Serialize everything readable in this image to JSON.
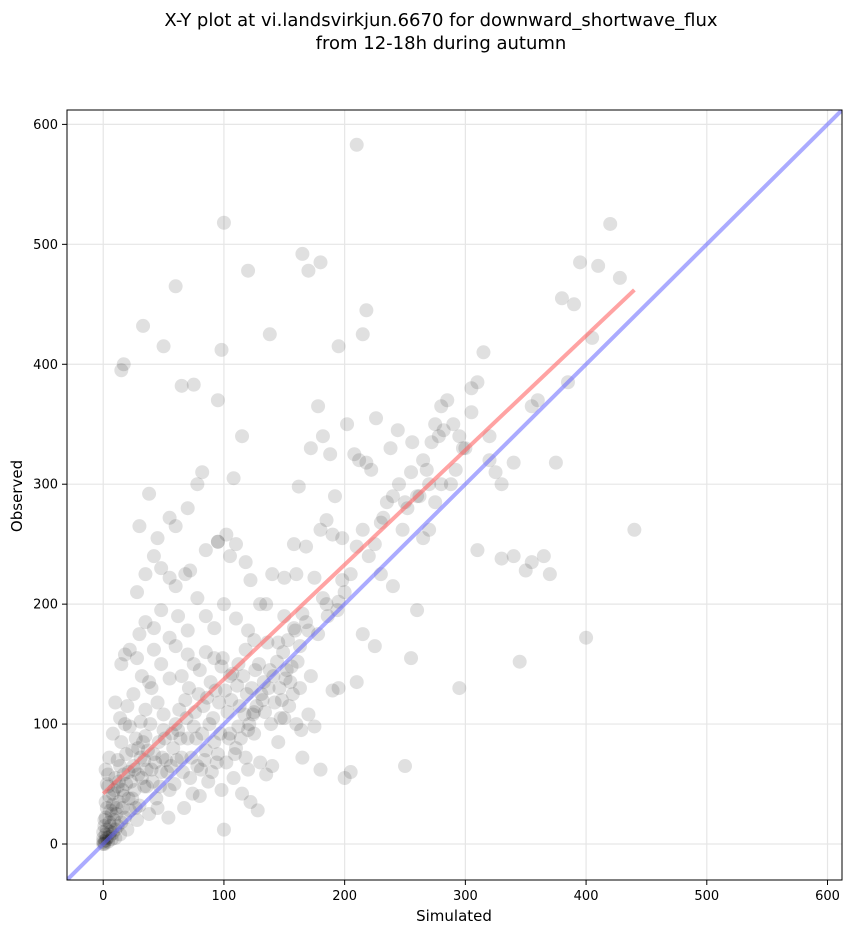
{
  "chart_data": {
    "type": "scatter",
    "title_line1": "X-Y plot at vi.landsvirkjun.6670 for downward_shortwave_flux",
    "title_line2": "from 12-18h during autumn",
    "xlabel": "Simulated",
    "ylabel": "Observed",
    "xlim": [
      -30,
      612
    ],
    "ylim": [
      -30,
      612
    ],
    "xticks": [
      0,
      100,
      200,
      300,
      400,
      500,
      600
    ],
    "yticks": [
      0,
      100,
      200,
      300,
      400,
      500,
      600
    ],
    "grid": true,
    "point_color": "#000000",
    "regression_color": "#ff6666",
    "identity_color": "#6666ff",
    "identity_line": {
      "x": [
        -30,
        612
      ],
      "y": [
        -30,
        612
      ]
    },
    "regression_line": {
      "x": [
        0,
        440
      ],
      "y": [
        42,
        462
      ]
    },
    "points": [
      [
        0,
        0
      ],
      [
        0,
        2
      ],
      [
        1,
        1
      ],
      [
        2,
        3
      ],
      [
        1,
        0
      ],
      [
        3,
        5
      ],
      [
        0,
        5
      ],
      [
        2,
        8
      ],
      [
        4,
        2
      ],
      [
        5,
        6
      ],
      [
        6,
        10
      ],
      [
        3,
        12
      ],
      [
        1,
        15
      ],
      [
        7,
        4
      ],
      [
        8,
        9
      ],
      [
        10,
        12
      ],
      [
        5,
        18
      ],
      [
        2,
        22
      ],
      [
        9,
        20
      ],
      [
        12,
        15
      ],
      [
        14,
        8
      ],
      [
        11,
        25
      ],
      [
        6,
        28
      ],
      [
        15,
        18
      ],
      [
        16,
        30
      ],
      [
        13,
        35
      ],
      [
        18,
        22
      ],
      [
        20,
        12
      ],
      [
        17,
        40
      ],
      [
        8,
        42
      ],
      [
        3,
        30
      ],
      [
        4,
        48
      ],
      [
        22,
        28
      ],
      [
        24,
        38
      ],
      [
        19,
        50
      ],
      [
        21,
        60
      ],
      [
        10,
        55
      ],
      [
        26,
        45
      ],
      [
        28,
        20
      ],
      [
        30,
        32
      ],
      [
        25,
        65
      ],
      [
        12,
        70
      ],
      [
        5,
        72
      ],
      [
        2,
        62
      ],
      [
        32,
        55
      ],
      [
        34,
        70
      ],
      [
        29,
        80
      ],
      [
        36,
        48
      ],
      [
        38,
        25
      ],
      [
        40,
        62
      ],
      [
        35,
        90
      ],
      [
        15,
        85
      ],
      [
        8,
        92
      ],
      [
        42,
        75
      ],
      [
        44,
        38
      ],
      [
        46,
        85
      ],
      [
        48,
        60
      ],
      [
        50,
        95
      ],
      [
        22,
        98
      ],
      [
        27,
        88
      ],
      [
        18,
        100
      ],
      [
        52,
        70
      ],
      [
        55,
        45
      ],
      [
        58,
        80
      ],
      [
        60,
        100
      ],
      [
        14,
        105
      ],
      [
        20,
        115
      ],
      [
        31,
        102
      ],
      [
        10,
        118
      ],
      [
        25,
        125
      ],
      [
        35,
        112
      ],
      [
        40,
        130
      ],
      [
        45,
        118
      ],
      [
        50,
        108
      ],
      [
        62,
        95
      ],
      [
        65,
        72
      ],
      [
        68,
        120
      ],
      [
        70,
        88
      ],
      [
        72,
        55
      ],
      [
        75,
        98
      ],
      [
        78,
        65
      ],
      [
        80,
        40
      ],
      [
        82,
        92
      ],
      [
        85,
        78
      ],
      [
        88,
        100
      ],
      [
        90,
        60
      ],
      [
        92,
        85
      ],
      [
        95,
        75
      ],
      [
        98,
        45
      ],
      [
        100,
        12
      ],
      [
        102,
        68
      ],
      [
        105,
        92
      ],
      [
        108,
        55
      ],
      [
        110,
        80
      ],
      [
        112,
        98
      ],
      [
        115,
        42
      ],
      [
        118,
        72
      ],
      [
        120,
        62
      ],
      [
        122,
        35
      ],
      [
        125,
        92
      ],
      [
        128,
        28
      ],
      [
        130,
        68
      ],
      [
        15,
        150
      ],
      [
        18,
        158
      ],
      [
        22,
        162
      ],
      [
        28,
        155
      ],
      [
        32,
        140
      ],
      [
        38,
        135
      ],
      [
        42,
        162
      ],
      [
        48,
        150
      ],
      [
        55,
        138
      ],
      [
        60,
        165
      ],
      [
        65,
        140
      ],
      [
        70,
        158
      ],
      [
        75,
        150
      ],
      [
        80,
        145
      ],
      [
        85,
        160
      ],
      [
        92,
        155
      ],
      [
        98,
        148
      ],
      [
        105,
        140
      ],
      [
        112,
        150
      ],
      [
        118,
        162
      ],
      [
        125,
        170
      ],
      [
        30,
        175
      ],
      [
        35,
        185
      ],
      [
        42,
        180
      ],
      [
        48,
        195
      ],
      [
        55,
        172
      ],
      [
        62,
        190
      ],
      [
        70,
        178
      ],
      [
        78,
        205
      ],
      [
        85,
        190
      ],
      [
        92,
        180
      ],
      [
        100,
        200
      ],
      [
        110,
        188
      ],
      [
        120,
        178
      ],
      [
        130,
        200
      ],
      [
        28,
        210
      ],
      [
        35,
        225
      ],
      [
        42,
        240
      ],
      [
        48,
        230
      ],
      [
        55,
        222
      ],
      [
        60,
        215
      ],
      [
        68,
        225
      ],
      [
        72,
        228
      ],
      [
        85,
        245
      ],
      [
        95,
        252
      ],
      [
        105,
        240
      ],
      [
        110,
        250
      ],
      [
        118,
        235
      ],
      [
        122,
        220
      ],
      [
        30,
        265
      ],
      [
        38,
        292
      ],
      [
        45,
        255
      ],
      [
        55,
        272
      ],
      [
        60,
        265
      ],
      [
        70,
        280
      ],
      [
        78,
        300
      ],
      [
        82,
        310
      ],
      [
        95,
        252
      ],
      [
        102,
        258
      ],
      [
        108,
        305
      ],
      [
        115,
        340
      ],
      [
        135,
        200
      ],
      [
        140,
        225
      ],
      [
        150,
        222
      ],
      [
        160,
        225
      ],
      [
        165,
        192
      ],
      [
        170,
        178
      ],
      [
        175,
        222
      ],
      [
        180,
        262
      ],
      [
        185,
        270
      ],
      [
        190,
        258
      ],
      [
        195,
        202
      ],
      [
        200,
        210
      ],
      [
        205,
        225
      ],
      [
        210,
        248
      ],
      [
        215,
        262
      ],
      [
        220,
        240
      ],
      [
        225,
        250
      ],
      [
        230,
        268
      ],
      [
        235,
        285
      ],
      [
        240,
        290
      ],
      [
        245,
        300
      ],
      [
        250,
        285
      ],
      [
        255,
        310
      ],
      [
        260,
        290
      ],
      [
        265,
        320
      ],
      [
        270,
        300
      ],
      [
        275,
        350
      ],
      [
        280,
        365
      ],
      [
        285,
        370
      ],
      [
        290,
        350
      ],
      [
        295,
        340
      ],
      [
        300,
        330
      ],
      [
        305,
        380
      ],
      [
        310,
        385
      ],
      [
        315,
        410
      ],
      [
        320,
        340
      ],
      [
        325,
        310
      ],
      [
        330,
        300
      ],
      [
        340,
        240
      ],
      [
        345,
        152
      ],
      [
        350,
        228
      ],
      [
        355,
        235
      ],
      [
        360,
        370
      ],
      [
        365,
        240
      ],
      [
        370,
        225
      ],
      [
        375,
        318
      ],
      [
        380,
        455
      ],
      [
        385,
        385
      ],
      [
        390,
        450
      ],
      [
        395,
        485
      ],
      [
        400,
        172
      ],
      [
        405,
        422
      ],
      [
        410,
        482
      ],
      [
        420,
        517
      ],
      [
        428,
        472
      ],
      [
        440,
        262
      ],
      [
        15,
        395
      ],
      [
        17,
        400
      ],
      [
        33,
        432
      ],
      [
        50,
        415
      ],
      [
        65,
        382
      ],
      [
        75,
        383
      ],
      [
        95,
        370
      ],
      [
        100,
        518
      ],
      [
        120,
        478
      ],
      [
        138,
        425
      ],
      [
        165,
        492
      ],
      [
        170,
        478
      ],
      [
        180,
        485
      ],
      [
        195,
        415
      ],
      [
        210,
        583
      ],
      [
        215,
        425
      ],
      [
        218,
        445
      ],
      [
        60,
        465
      ],
      [
        98,
        412
      ],
      [
        135,
        58
      ],
      [
        140,
        65
      ],
      [
        145,
        85
      ],
      [
        150,
        105
      ],
      [
        155,
        135
      ],
      [
        160,
        100
      ],
      [
        165,
        72
      ],
      [
        170,
        108
      ],
      [
        175,
        98
      ],
      [
        180,
        62
      ],
      [
        185,
        200
      ],
      [
        190,
        128
      ],
      [
        195,
        130
      ],
      [
        200,
        55
      ],
      [
        205,
        60
      ],
      [
        210,
        135
      ],
      [
        215,
        175
      ],
      [
        225,
        165
      ],
      [
        230,
        225
      ],
      [
        240,
        215
      ],
      [
        250,
        65
      ],
      [
        255,
        155
      ],
      [
        260,
        195
      ],
      [
        265,
        255
      ],
      [
        270,
        262
      ],
      [
        275,
        285
      ],
      [
        280,
        300
      ],
      [
        295,
        130
      ],
      [
        305,
        360
      ],
      [
        310,
        245
      ],
      [
        320,
        320
      ],
      [
        330,
        238
      ],
      [
        355,
        365
      ],
      [
        340,
        318
      ],
      [
        150,
        190
      ],
      [
        158,
        250
      ],
      [
        162,
        298
      ],
      [
        168,
        248
      ],
      [
        172,
        330
      ],
      [
        178,
        365
      ],
      [
        182,
        340
      ],
      [
        188,
        325
      ],
      [
        192,
        290
      ],
      [
        198,
        255
      ],
      [
        202,
        350
      ],
      [
        208,
        325
      ],
      [
        212,
        320
      ],
      [
        218,
        318
      ],
      [
        222,
        312
      ],
      [
        226,
        355
      ],
      [
        232,
        272
      ],
      [
        238,
        330
      ],
      [
        244,
        345
      ],
      [
        248,
        262
      ],
      [
        252,
        280
      ],
      [
        256,
        335
      ],
      [
        262,
        290
      ],
      [
        268,
        312
      ],
      [
        272,
        335
      ],
      [
        278,
        340
      ],
      [
        282,
        345
      ],
      [
        288,
        300
      ],
      [
        292,
        312
      ],
      [
        298,
        330
      ],
      [
        120,
        95
      ],
      [
        125,
        110
      ],
      [
        132,
        120
      ],
      [
        138,
        145
      ],
      [
        145,
        168
      ],
      [
        148,
        120
      ],
      [
        152,
        145
      ],
      [
        158,
        180
      ],
      [
        163,
        165
      ],
      [
        168,
        185
      ],
      [
        172,
        140
      ],
      [
        178,
        175
      ],
      [
        182,
        205
      ],
      [
        186,
        190
      ],
      [
        194,
        195
      ],
      [
        198,
        220
      ],
      [
        0,
        10
      ],
      [
        1,
        20
      ],
      [
        2,
        35
      ],
      [
        3,
        50
      ],
      [
        4,
        58
      ],
      [
        5,
        40
      ],
      [
        6,
        15
      ],
      [
        7,
        25
      ],
      [
        8,
        33
      ],
      [
        9,
        45
      ],
      [
        10,
        5
      ],
      [
        11,
        30
      ],
      [
        12,
        48
      ],
      [
        13,
        52
      ],
      [
        14,
        65
      ],
      [
        16,
        45
      ],
      [
        17,
        58
      ],
      [
        19,
        75
      ],
      [
        21,
        38
      ],
      [
        23,
        52
      ],
      [
        24,
        78
      ],
      [
        26,
        62
      ],
      [
        27,
        30
      ],
      [
        29,
        58
      ],
      [
        31,
        72
      ],
      [
        33,
        85
      ],
      [
        34,
        48
      ],
      [
        36,
        62
      ],
      [
        37,
        78
      ],
      [
        39,
        100
      ],
      [
        41,
        52
      ],
      [
        43,
        68
      ],
      [
        45,
        30
      ],
      [
        47,
        48
      ],
      [
        49,
        72
      ],
      [
        51,
        88
      ],
      [
        53,
        60
      ],
      [
        54,
        22
      ],
      [
        56,
        65
      ],
      [
        57,
        92
      ],
      [
        59,
        50
      ],
      [
        61,
        70
      ],
      [
        63,
        112
      ],
      [
        64,
        88
      ],
      [
        66,
        60
      ],
      [
        67,
        30
      ],
      [
        69,
        105
      ],
      [
        71,
        130
      ],
      [
        73,
        72
      ],
      [
        74,
        42
      ],
      [
        76,
        110
      ],
      [
        77,
        88
      ],
      [
        79,
        125
      ],
      [
        81,
        62
      ],
      [
        83,
        115
      ],
      [
        84,
        70
      ],
      [
        86,
        122
      ],
      [
        87,
        52
      ],
      [
        89,
        135
      ],
      [
        91,
        105
      ],
      [
        93,
        128
      ],
      [
        94,
        68
      ],
      [
        96,
        118
      ],
      [
        97,
        92
      ],
      [
        99,
        155
      ],
      [
        101,
        128
      ],
      [
        103,
        110
      ],
      [
        104,
        88
      ],
      [
        106,
        120
      ],
      [
        107,
        142
      ],
      [
        109,
        75
      ],
      [
        111,
        132
      ],
      [
        113,
        115
      ],
      [
        114,
        88
      ],
      [
        116,
        140
      ],
      [
        117,
        108
      ],
      [
        119,
        125
      ],
      [
        121,
        100
      ],
      [
        123,
        130
      ],
      [
        124,
        108
      ],
      [
        126,
        145
      ],
      [
        127,
        115
      ],
      [
        129,
        150
      ],
      [
        131,
        125
      ],
      [
        133,
        135
      ],
      [
        134,
        110
      ],
      [
        136,
        168
      ],
      [
        137,
        130
      ],
      [
        139,
        100
      ],
      [
        141,
        140
      ],
      [
        142,
        118
      ],
      [
        144,
        152
      ],
      [
        146,
        130
      ],
      [
        147,
        105
      ],
      [
        149,
        160
      ],
      [
        151,
        138
      ],
      [
        153,
        170
      ],
      [
        154,
        115
      ],
      [
        156,
        148
      ],
      [
        157,
        125
      ],
      [
        159,
        178
      ],
      [
        161,
        152
      ],
      [
        163,
        130
      ],
      [
        164,
        95
      ]
    ]
  }
}
